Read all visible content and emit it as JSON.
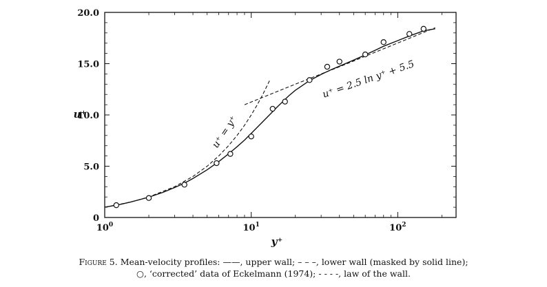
{
  "chart_data": {
    "type": "line",
    "x_scale": "log",
    "xlim": [
      1,
      250
    ],
    "ylim": [
      0,
      20
    ],
    "ylabel": "u⁺",
    "xlabel": "y⁺",
    "xticks": [
      {
        "value": 1,
        "base": "10",
        "exp": "0"
      },
      {
        "value": 10,
        "base": "10",
        "exp": "1"
      },
      {
        "value": 100,
        "base": "10",
        "exp": "2"
      }
    ],
    "yticks": [
      {
        "value": 0,
        "label": "0"
      },
      {
        "value": 5,
        "label": "5.0"
      },
      {
        "value": 10,
        "label": "10.0"
      },
      {
        "value": 15,
        "label": "15.0"
      },
      {
        "value": 20,
        "label": "20.0"
      }
    ],
    "series": [
      {
        "name": "upper wall",
        "style": "solid",
        "x": [
          1,
          1.25,
          1.5,
          2,
          2.5,
          3,
          3.5,
          4,
          5,
          6,
          7,
          8,
          9,
          10,
          11,
          12,
          13,
          15,
          18,
          20,
          25,
          30,
          35,
          40,
          50,
          60,
          70,
          80,
          100,
          120,
          150,
          180
        ],
        "y": [
          1.0,
          1.25,
          1.5,
          1.98,
          2.45,
          2.92,
          3.35,
          3.8,
          4.65,
          5.45,
          6.2,
          6.9,
          7.55,
          8.2,
          8.8,
          9.35,
          9.85,
          10.75,
          11.85,
          12.4,
          13.35,
          13.95,
          14.4,
          14.75,
          15.35,
          15.85,
          16.3,
          16.7,
          17.25,
          17.7,
          18.2,
          18.4
        ]
      },
      {
        "name": "law of the wall: u+ = y+",
        "style": "dashed",
        "x": [
          1,
          1.5,
          2,
          3,
          4,
          5,
          6,
          7,
          8,
          9,
          10,
          11,
          12,
          13.5
        ],
        "y": [
          1,
          1.5,
          2,
          3,
          4,
          5,
          6,
          7,
          8,
          9,
          10,
          11,
          12,
          13.5
        ]
      },
      {
        "name": "law of the wall: u+ = 2.5 ln y+ + 5.5",
        "style": "dashed",
        "x": [
          9,
          20,
          40,
          80,
          180
        ],
        "y": [
          11.0,
          13.0,
          14.7,
          16.45,
          18.5
        ]
      },
      {
        "name": "'corrected' data of Eckelmann (1974)",
        "style": "marker",
        "x": [
          1.2,
          2,
          3.5,
          5.8,
          7.2,
          10,
          14,
          17,
          25,
          33,
          40,
          60,
          80,
          120,
          150
        ],
        "y": [
          1.2,
          1.9,
          3.2,
          5.3,
          6.2,
          7.9,
          10.6,
          11.3,
          13.4,
          14.7,
          15.2,
          15.9,
          17.1,
          17.9,
          18.4
        ]
      }
    ],
    "annotations": {
      "linear": "u⁺ = y⁺",
      "log": "u⁺ = 2.5 ln y⁺ + 5.5"
    }
  },
  "caption": {
    "figure_label": "Figure 5.",
    "line1_rest": " Mean-velocity profiles: ——, upper wall; – – –, lower wall (masked by solid line);",
    "line2": "○, ‘corrected’ data of Eckelmann (1974); - - - -, law of the wall."
  }
}
